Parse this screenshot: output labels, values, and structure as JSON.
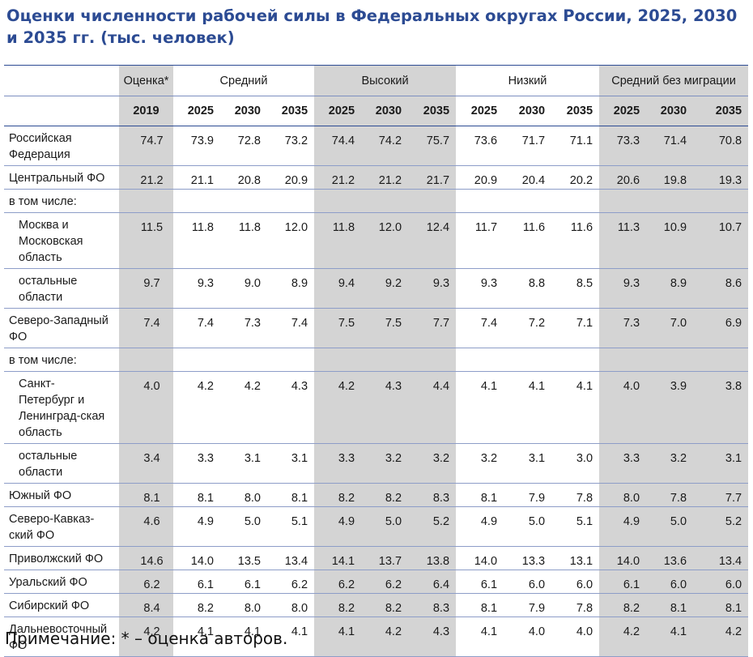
{
  "title": "Оценки численности рабочей силы в Федеральных округах России, 2025, 2030 и 2035 гг. (тыс. человек)",
  "table": {
    "groups": [
      {
        "label": "Оценка*"
      },
      {
        "label": "Средний"
      },
      {
        "label": "Высокий"
      },
      {
        "label": "Низкий"
      },
      {
        "label": "Средний без миграции"
      }
    ],
    "years": [
      "2019",
      "2025",
      "2030",
      "2035",
      "2025",
      "2030",
      "2035",
      "2025",
      "2030",
      "2035",
      "2025",
      "2030",
      "2035"
    ],
    "rows": [
      {
        "label": "Российская Федерация",
        "values": [
          "74.7",
          "73.9",
          "72.8",
          "73.2",
          "74.4",
          "74.2",
          "75.7",
          "73.6",
          "71.7",
          "71.1",
          "73.3",
          "71.4",
          "70.8"
        ]
      },
      {
        "label": "Центральный ФО",
        "values": [
          "21.2",
          "21.1",
          "20.8",
          "20.9",
          "21.2",
          "21.2",
          "21.7",
          "20.9",
          "20.4",
          "20.2",
          "20.6",
          "19.8",
          "19.3"
        ]
      },
      {
        "label": "в том числе:",
        "values": []
      },
      {
        "label": "Москва и Московская область",
        "values": [
          "11.5",
          "11.8",
          "11.8",
          "12.0",
          "11.8",
          "12.0",
          "12.4",
          "11.7",
          "11.6",
          "11.6",
          "11.3",
          "10.9",
          "10.7"
        ]
      },
      {
        "label": "остальные области",
        "values": [
          "9.7",
          "9.3",
          "9.0",
          "8.9",
          "9.4",
          "9.2",
          "9.3",
          "9.3",
          "8.8",
          "8.5",
          "9.3",
          "8.9",
          "8.6"
        ]
      },
      {
        "label": "Северо-Западный ФО",
        "values": [
          "7.4",
          "7.4",
          "7.3",
          "7.4",
          "7.5",
          "7.5",
          "7.7",
          "7.4",
          "7.2",
          "7.1",
          "7.3",
          "7.0",
          "6.9"
        ]
      },
      {
        "label": "в том числе:",
        "values": []
      },
      {
        "label": "Санкт-Петербург и Ленинград-ская область",
        "values": [
          "4.0",
          "4.2",
          "4.2",
          "4.3",
          "4.2",
          "4.3",
          "4.4",
          "4.1",
          "4.1",
          "4.1",
          "4.0",
          "3.9",
          "3.8"
        ]
      },
      {
        "label": "остальные области",
        "values": [
          "3.4",
          "3.3",
          "3.1",
          "3.1",
          "3.3",
          "3.2",
          "3.2",
          "3.2",
          "3.1",
          "3.0",
          "3.3",
          "3.2",
          "3.1"
        ]
      },
      {
        "label": "Южный ФО",
        "values": [
          "8.1",
          "8.1",
          "8.0",
          "8.1",
          "8.2",
          "8.2",
          "8.3",
          "8.1",
          "7.9",
          "7.8",
          "8.0",
          "7.8",
          "7.7"
        ]
      },
      {
        "label": "Северо-Кавказ-ский ФО",
        "values": [
          "4.6",
          "4.9",
          "5.0",
          "5.1",
          "4.9",
          "5.0",
          "5.2",
          "4.9",
          "5.0",
          "5.1",
          "4.9",
          "5.0",
          "5.2"
        ]
      },
      {
        "label": "Приволжский ФО",
        "values": [
          "14.6",
          "14.0",
          "13.5",
          "13.4",
          "14.1",
          "13.7",
          "13.8",
          "14.0",
          "13.3",
          "13.1",
          "14.0",
          "13.6",
          "13.4"
        ]
      },
      {
        "label": "Уральский ФО",
        "values": [
          "6.2",
          "6.1",
          "6.1",
          "6.2",
          "6.2",
          "6.2",
          "6.4",
          "6.1",
          "6.0",
          "6.0",
          "6.1",
          "6.0",
          "6.0"
        ]
      },
      {
        "label": "Сибирский ФО",
        "values": [
          "8.4",
          "8.2",
          "8.0",
          "8.0",
          "8.2",
          "8.2",
          "8.3",
          "8.1",
          "7.9",
          "7.8",
          "8.2",
          "8.1",
          "8.1"
        ]
      },
      {
        "label": "Дальневосточный ФО",
        "values": [
          "4.2",
          "4.1",
          "4.1",
          "4.1",
          "4.1",
          "4.2",
          "4.3",
          "4.1",
          "4.0",
          "4.0",
          "4.2",
          "4.1",
          "4.2"
        ]
      }
    ]
  },
  "note": "Примечание: * – оценка авторов."
}
